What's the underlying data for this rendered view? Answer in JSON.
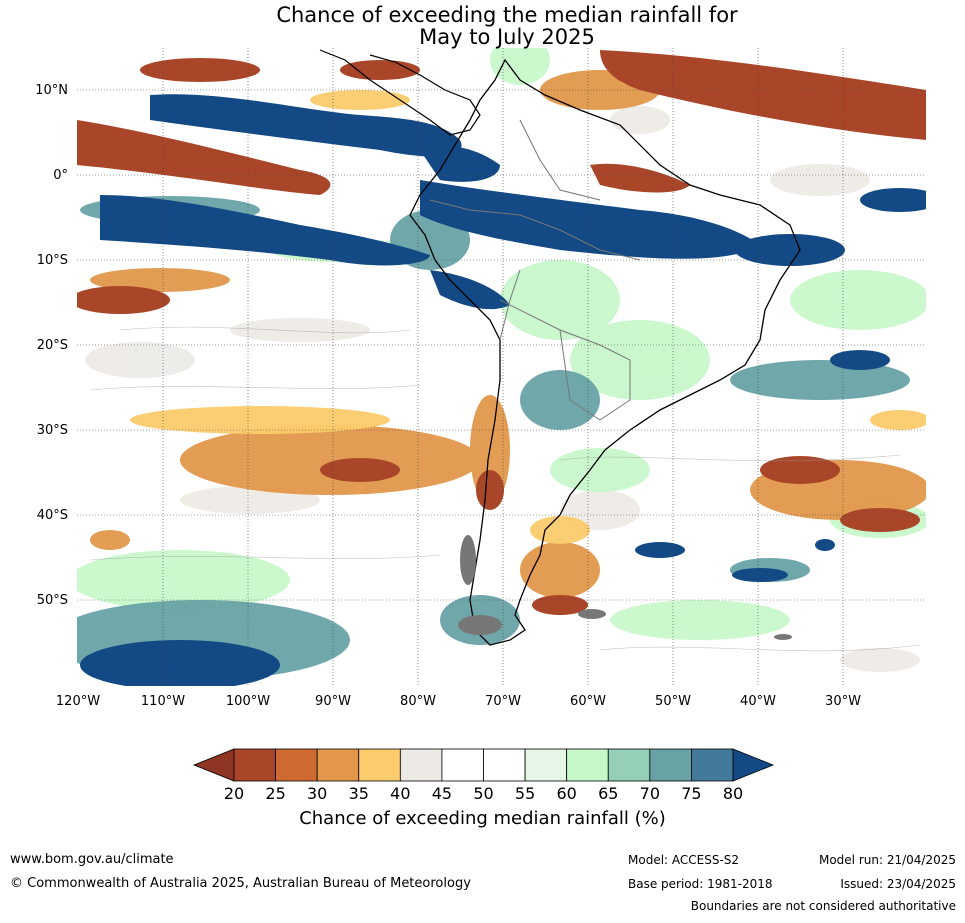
{
  "title": {
    "line1": "Chance of exceeding the median rainfall for",
    "line2": "May to July 2025"
  },
  "map": {
    "lat_labels": [
      "10°N",
      "0°",
      "10°S",
      "20°S",
      "30°S",
      "40°S",
      "50°S"
    ],
    "lon_labels": [
      "120°W",
      "110°W",
      "100°W",
      "90°W",
      "80°W",
      "70°W",
      "60°W",
      "50°W",
      "40°W",
      "30°W"
    ],
    "lon_range_deg": [
      -120,
      -20
    ],
    "lat_range_deg": [
      -60,
      15
    ],
    "grid": true
  },
  "colorbar": {
    "ticks": [
      "20",
      "25",
      "30",
      "35",
      "40",
      "45",
      "50",
      "55",
      "60",
      "65",
      "70",
      "75",
      "80"
    ],
    "colors": [
      "#8e3523",
      "#a9462a",
      "#cf6a32",
      "#e2974a",
      "#fbcb6c",
      "#edeae6",
      "#ffffff",
      "#ffffff",
      "#e7f5e7",
      "#c5f7c8",
      "#96cfb7",
      "#68a2a5",
      "#437a9c",
      "#134a85"
    ],
    "label": "Chance of exceeding median rainfall (%)"
  },
  "footer": {
    "website": "www.bom.gov.au/climate",
    "copyright": "© Commonwealth of Australia 2025, Australian Bureau of Meteorology",
    "model": "Model: ACCESS-S2",
    "base_period": "Base period: 1981-2018",
    "model_run": "Model run: 21/04/2025",
    "issued": "Issued: 23/04/2025",
    "disclaimer": "Boundaries are not considered authoritative"
  }
}
